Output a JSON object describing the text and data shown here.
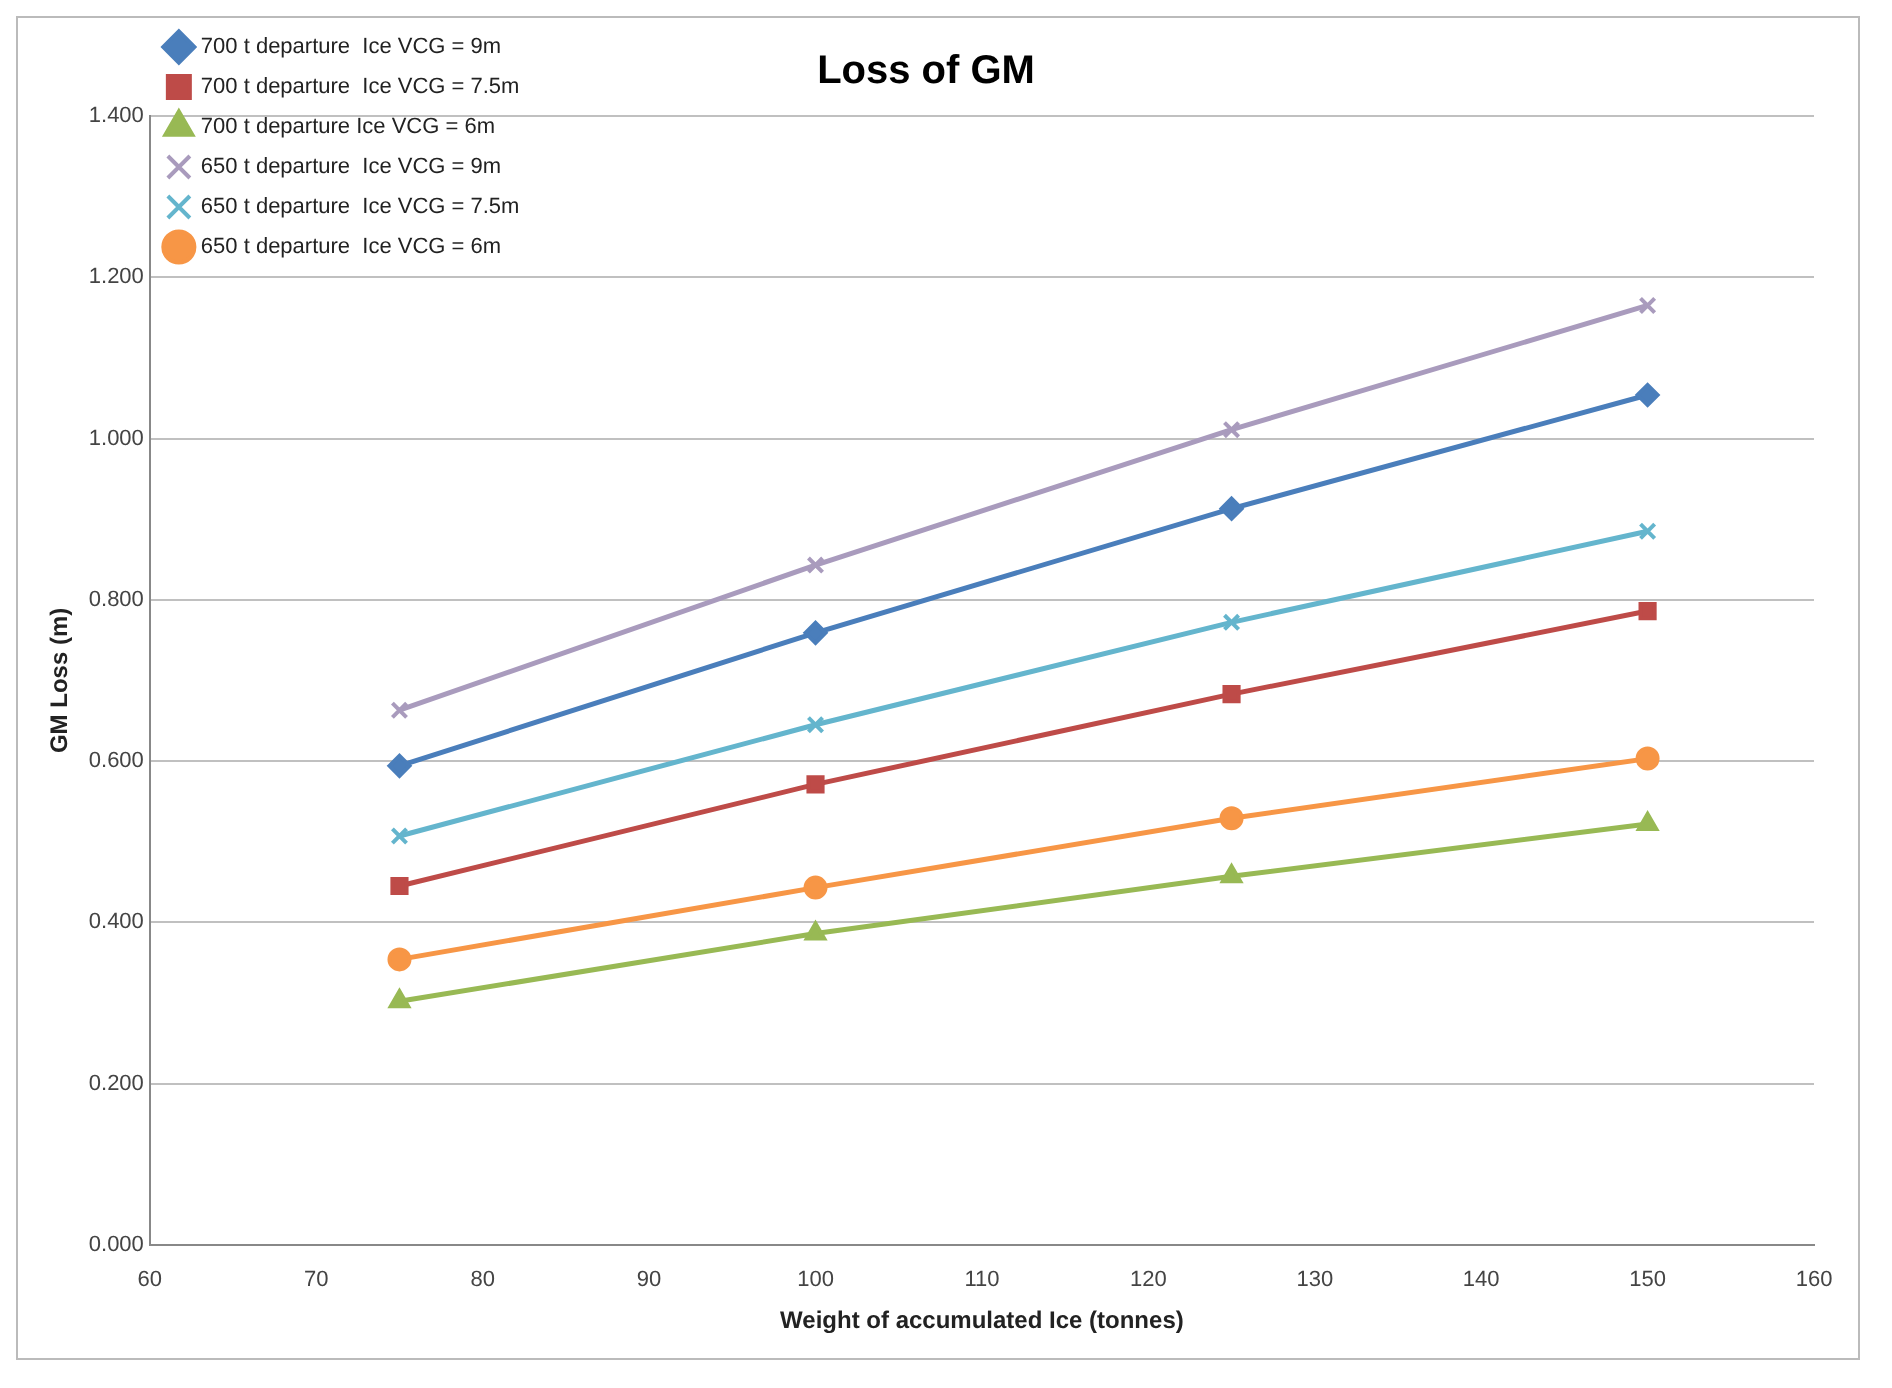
{
  "chart_data": {
    "type": "line",
    "title": "Loss of GM",
    "xlabel": "Weight of accumulated Ice (tonnes)",
    "ylabel": "GM Loss (m)",
    "x": [
      75,
      100,
      125,
      150
    ],
    "series": [
      {
        "name": "700 t departure  Ice VCG = 9m",
        "color": "#4a7ebb",
        "marker": "diamond",
        "values": [
          0.594,
          0.759,
          0.913,
          1.054
        ]
      },
      {
        "name": "700 t departure  Ice VCG = 7.5m",
        "color": "#be4b48",
        "marker": "square",
        "values": [
          0.445,
          0.571,
          0.683,
          0.786
        ]
      },
      {
        "name": "700 t departure Ice VCG = 6m",
        "color": "#98b954",
        "marker": "triangle",
        "values": [
          0.302,
          0.386,
          0.457,
          0.522
        ]
      },
      {
        "name": "650 t departure  Ice VCG = 9m",
        "color": "#a99bbd",
        "marker": "cross",
        "values": [
          0.663,
          0.843,
          1.011,
          1.165
        ]
      },
      {
        "name": "650 t departure  Ice VCG = 7.5m",
        "color": "#64b5cd",
        "marker": "cross",
        "values": [
          0.507,
          0.645,
          0.772,
          0.885
        ]
      },
      {
        "name": "650 t departure  Ice VCG = 6m",
        "color": "#f79646",
        "marker": "circle",
        "values": [
          0.354,
          0.443,
          0.529,
          0.603
        ]
      }
    ],
    "xlim": [
      60,
      160
    ],
    "xticks": [
      60,
      70,
      80,
      90,
      100,
      110,
      120,
      130,
      140,
      150,
      160
    ],
    "ylim": [
      0,
      1.4
    ],
    "yticks": [
      {
        "value": 0,
        "label": "0.000"
      },
      {
        "value": 0.2,
        "label": "0.200"
      },
      {
        "value": 0.4,
        "label": "0.400"
      },
      {
        "value": 0.6,
        "label": "0.600"
      },
      {
        "value": 0.8,
        "label": "0.800"
      },
      {
        "value": 1,
        "label": "1.000"
      },
      {
        "value": 1.2,
        "label": "1.200"
      },
      {
        "value": 1.4,
        "label": "1.400"
      }
    ],
    "grid": "y",
    "legend": "top left"
  }
}
